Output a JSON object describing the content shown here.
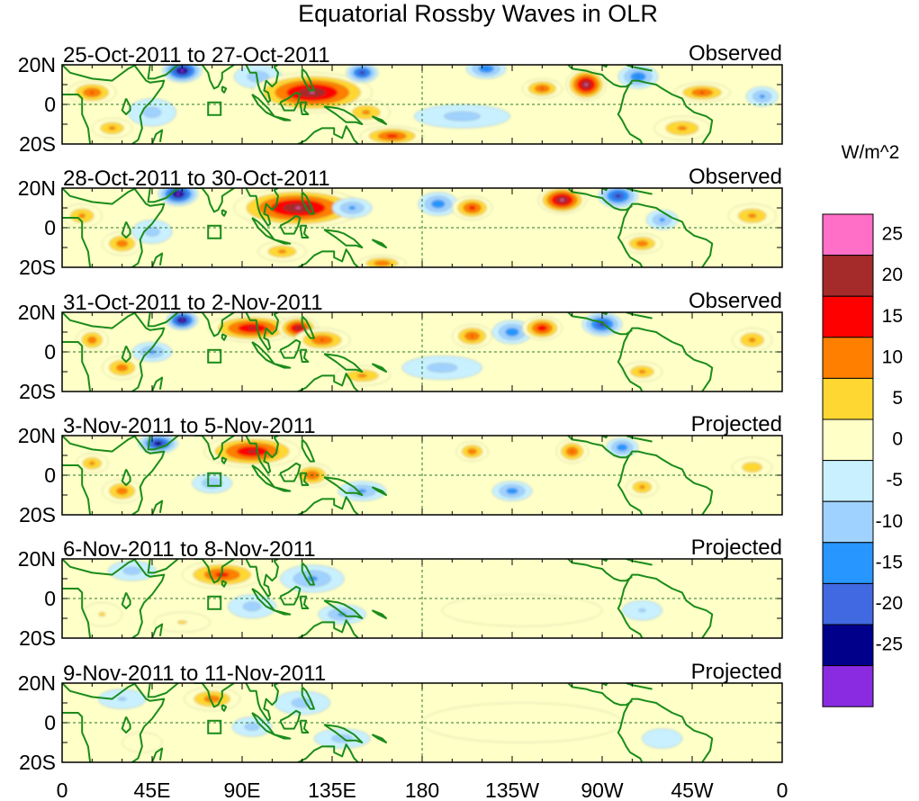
{
  "chart_data": {
    "type": "heatmap",
    "title": "Equatorial Rossby Waves in OLR",
    "units_label": "W/m^2",
    "x_ticks": [
      "0",
      "45E",
      "90E",
      "135E",
      "180",
      "135W",
      "90W",
      "45W",
      "0"
    ],
    "y_ticks": [
      "20N",
      "0",
      "20S"
    ],
    "x_range_deg_east": [
      0,
      360
    ],
    "y_range_deg": [
      -20,
      20
    ],
    "colorbar": {
      "levels": [
        "25",
        "20",
        "15",
        "10",
        "5",
        "0",
        "-5",
        "-10",
        "-15",
        "-20",
        "-25"
      ],
      "colors": [
        "#ff6ec7",
        "#a52a2a",
        "#ff0000",
        "#ff7f00",
        "#ffd732",
        "#ffffc8",
        "#c8f0ff",
        "#a0d2ff",
        "#2896ff",
        "#4169e1",
        "#00008b",
        "#8a2be2"
      ]
    },
    "panels": [
      {
        "date_range": "25-Oct-2011 to 27-Oct-2011",
        "kind": "Observed",
        "anomalies": [
          {
            "lon": 15,
            "lat": 6,
            "rlon": 12,
            "rlat": 6,
            "value": 16
          },
          {
            "lon": 60,
            "lat": 17,
            "rlon": 10,
            "rlat": 6,
            "value": -28
          },
          {
            "lon": 45,
            "lat": -4,
            "rlon": 12,
            "rlat": 7,
            "value": -8
          },
          {
            "lon": 25,
            "lat": -12,
            "rlon": 10,
            "rlat": 5,
            "value": 12
          },
          {
            "lon": 98,
            "lat": 14,
            "rlon": 12,
            "rlat": 6,
            "value": -9
          },
          {
            "lon": 125,
            "lat": 6,
            "rlon": 30,
            "rlat": 10,
            "value": 26
          },
          {
            "lon": 150,
            "lat": 16,
            "rlon": 8,
            "rlat": 5,
            "value": -22
          },
          {
            "lon": 165,
            "lat": -16,
            "rlon": 16,
            "rlat": 5,
            "value": 18
          },
          {
            "lon": 152,
            "lat": -4,
            "rlon": 12,
            "rlat": 6,
            "value": 12
          },
          {
            "lon": 212,
            "lat": 18,
            "rlon": 10,
            "rlat": 5,
            "value": -16
          },
          {
            "lon": 240,
            "lat": 8,
            "rlon": 10,
            "rlat": 5,
            "value": 16
          },
          {
            "lon": 262,
            "lat": 10,
            "rlon": 10,
            "rlat": 8,
            "value": 27
          },
          {
            "lon": 288,
            "lat": 14,
            "rlon": 10,
            "rlat": 6,
            "value": -16
          },
          {
            "lon": 320,
            "lat": 6,
            "rlon": 14,
            "rlat": 5,
            "value": 16
          },
          {
            "lon": 350,
            "lat": 4,
            "rlon": 8,
            "rlat": 5,
            "value": -12
          },
          {
            "lon": 310,
            "lat": -12,
            "rlon": 14,
            "rlat": 6,
            "value": 12
          },
          {
            "lon": 200,
            "lat": -6,
            "rlon": 24,
            "rlat": 6,
            "value": -8
          }
        ]
      },
      {
        "date_range": "28-Oct-2011 to 30-Oct-2011",
        "kind": "Observed",
        "anomalies": [
          {
            "lon": 10,
            "lat": 6,
            "rlon": 10,
            "rlat": 6,
            "value": 12
          },
          {
            "lon": 58,
            "lat": 17,
            "rlon": 10,
            "rlat": 6,
            "value": -28
          },
          {
            "lon": 30,
            "lat": -8,
            "rlon": 10,
            "rlat": 6,
            "value": 14
          },
          {
            "lon": 45,
            "lat": -2,
            "rlon": 10,
            "rlat": 6,
            "value": -8
          },
          {
            "lon": 118,
            "lat": 10,
            "rlon": 32,
            "rlat": 10,
            "value": 26
          },
          {
            "lon": 145,
            "lat": 10,
            "rlon": 10,
            "rlat": 5,
            "value": -12
          },
          {
            "lon": 110,
            "lat": -12,
            "rlon": 12,
            "rlat": 5,
            "value": 12
          },
          {
            "lon": 160,
            "lat": -18,
            "rlon": 12,
            "rlat": 4,
            "value": 15
          },
          {
            "lon": 188,
            "lat": 12,
            "rlon": 10,
            "rlat": 6,
            "value": -15
          },
          {
            "lon": 205,
            "lat": 10,
            "rlon": 10,
            "rlat": 6,
            "value": 18
          },
          {
            "lon": 250,
            "lat": 14,
            "rlon": 12,
            "rlat": 7,
            "value": 27
          },
          {
            "lon": 278,
            "lat": 16,
            "rlon": 10,
            "rlat": 6,
            "value": -22
          },
          {
            "lon": 300,
            "lat": 4,
            "rlon": 8,
            "rlat": 5,
            "value": -12
          },
          {
            "lon": 290,
            "lat": -8,
            "rlon": 10,
            "rlat": 5,
            "value": 14
          },
          {
            "lon": 345,
            "lat": 6,
            "rlon": 12,
            "rlat": 6,
            "value": 12
          }
        ]
      },
      {
        "date_range": "31-Oct-2011 to 2-Nov-2011",
        "kind": "Observed",
        "anomalies": [
          {
            "lon": 15,
            "lat": 6,
            "rlon": 8,
            "rlat": 6,
            "value": 14
          },
          {
            "lon": 60,
            "lat": 16,
            "rlon": 8,
            "rlat": 5,
            "value": -28
          },
          {
            "lon": 30,
            "lat": -8,
            "rlon": 10,
            "rlat": 6,
            "value": 14
          },
          {
            "lon": 95,
            "lat": 12,
            "rlon": 22,
            "rlat": 7,
            "value": 22
          },
          {
            "lon": 118,
            "lat": 12,
            "rlon": 10,
            "rlat": 6,
            "value": 24
          },
          {
            "lon": 130,
            "lat": 6,
            "rlon": 14,
            "rlat": 6,
            "value": 16
          },
          {
            "lon": 150,
            "lat": -12,
            "rlon": 14,
            "rlat": 5,
            "value": 12
          },
          {
            "lon": 205,
            "lat": 8,
            "rlon": 10,
            "rlat": 6,
            "value": 16
          },
          {
            "lon": 225,
            "lat": 10,
            "rlon": 10,
            "rlat": 6,
            "value": -15
          },
          {
            "lon": 240,
            "lat": 12,
            "rlon": 10,
            "rlat": 6,
            "value": 20
          },
          {
            "lon": 270,
            "lat": 14,
            "rlon": 10,
            "rlat": 6,
            "value": -22
          },
          {
            "lon": 290,
            "lat": -10,
            "rlon": 10,
            "rlat": 5,
            "value": 12
          },
          {
            "lon": 345,
            "lat": 6,
            "rlon": 10,
            "rlat": 6,
            "value": 12
          },
          {
            "lon": 190,
            "lat": -8,
            "rlon": 20,
            "rlat": 6,
            "value": -8
          },
          {
            "lon": 45,
            "lat": 0,
            "rlon": 10,
            "rlat": 5,
            "value": -12
          }
        ]
      },
      {
        "date_range": "3-Nov-2011 to 5-Nov-2011",
        "kind": "Projected",
        "anomalies": [
          {
            "lon": 15,
            "lat": 6,
            "rlon": 8,
            "rlat": 5,
            "value": 12
          },
          {
            "lon": 48,
            "lat": 16,
            "rlon": 10,
            "rlat": 5,
            "value": -25
          },
          {
            "lon": 30,
            "lat": -8,
            "rlon": 10,
            "rlat": 6,
            "value": 14
          },
          {
            "lon": 95,
            "lat": 12,
            "rlon": 24,
            "rlat": 8,
            "value": 22
          },
          {
            "lon": 125,
            "lat": 0,
            "rlon": 10,
            "rlat": 6,
            "value": 16
          },
          {
            "lon": 150,
            "lat": -8,
            "rlon": 12,
            "rlat": 5,
            "value": -12
          },
          {
            "lon": 205,
            "lat": 12,
            "rlon": 8,
            "rlat": 5,
            "value": 14
          },
          {
            "lon": 225,
            "lat": -8,
            "rlon": 10,
            "rlat": 5,
            "value": -14
          },
          {
            "lon": 255,
            "lat": 12,
            "rlon": 8,
            "rlat": 6,
            "value": 16
          },
          {
            "lon": 280,
            "lat": 14,
            "rlon": 8,
            "rlat": 5,
            "value": -15
          },
          {
            "lon": 290,
            "lat": -6,
            "rlon": 8,
            "rlat": 5,
            "value": 12
          },
          {
            "lon": 345,
            "lat": 4,
            "rlon": 10,
            "rlat": 5,
            "value": 10
          },
          {
            "lon": 75,
            "lat": -4,
            "rlon": 10,
            "rlat": 5,
            "value": -10
          }
        ]
      },
      {
        "date_range": "6-Nov-2011 to 8-Nov-2011",
        "kind": "Projected",
        "anomalies": [
          {
            "lon": 80,
            "lat": 12,
            "rlon": 20,
            "rlat": 7,
            "value": 18
          },
          {
            "lon": 125,
            "lat": 10,
            "rlon": 16,
            "rlat": 7,
            "value": -12
          },
          {
            "lon": 35,
            "lat": 14,
            "rlon": 12,
            "rlat": 5,
            "value": -8
          },
          {
            "lon": 95,
            "lat": -4,
            "rlon": 12,
            "rlat": 6,
            "value": -8
          },
          {
            "lon": 140,
            "lat": -8,
            "rlon": 12,
            "rlat": 5,
            "value": -12
          },
          {
            "lon": 60,
            "lat": -12,
            "rlon": 14,
            "rlat": 5,
            "value": 6
          },
          {
            "lon": 290,
            "lat": -6,
            "rlon": 10,
            "rlat": 5,
            "value": -6
          },
          {
            "lon": 20,
            "lat": -8,
            "rlon": 10,
            "rlat": 6,
            "value": 6
          },
          {
            "lon": 230,
            "lat": -6,
            "rlon": 40,
            "rlat": 8,
            "value": 2
          }
        ]
      },
      {
        "date_range": "9-Nov-2011 to 11-Nov-2011",
        "kind": "Projected",
        "anomalies": [
          {
            "lon": 75,
            "lat": 12,
            "rlon": 14,
            "rlat": 6,
            "value": 14
          },
          {
            "lon": 95,
            "lat": -2,
            "rlon": 10,
            "rlat": 5,
            "value": -8
          },
          {
            "lon": 120,
            "lat": 10,
            "rlon": 14,
            "rlat": 6,
            "value": -8
          },
          {
            "lon": 140,
            "lat": -8,
            "rlon": 14,
            "rlat": 5,
            "value": -8
          },
          {
            "lon": 30,
            "lat": 12,
            "rlon": 12,
            "rlat": 5,
            "value": -6
          },
          {
            "lon": 230,
            "lat": 0,
            "rlon": 50,
            "rlat": 10,
            "value": 2
          },
          {
            "lon": 300,
            "lat": -8,
            "rlon": 10,
            "rlat": 5,
            "value": -5
          },
          {
            "lon": 40,
            "lat": -10,
            "rlon": 10,
            "rlat": 5,
            "value": 4
          }
        ]
      }
    ]
  }
}
